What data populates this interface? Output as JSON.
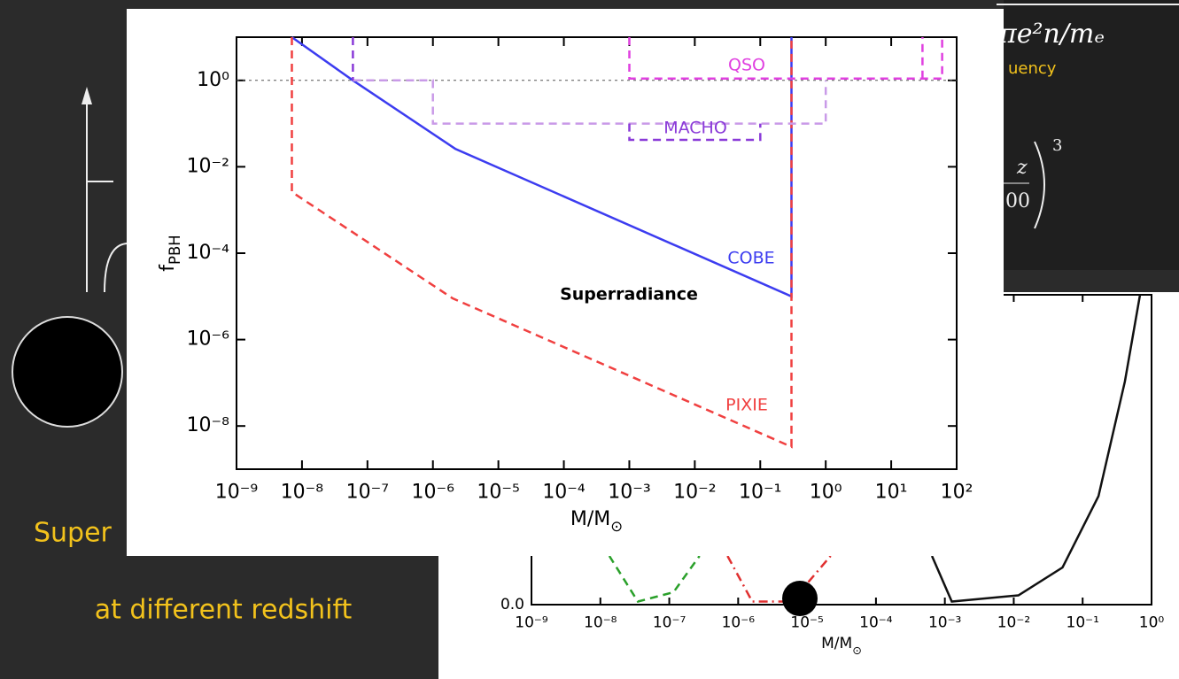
{
  "slide": {
    "caption_1": "Super",
    "caption_2": "at different redshift",
    "formula_1": "πe²n/mₑ",
    "formula_2": "uency",
    "formula_3a": "z",
    "formula_3b": "00",
    "formula_3c": "3"
  },
  "chart_data": [
    {
      "type": "line",
      "xscale": "log",
      "yscale": "log",
      "xlabel": "M/M",
      "xlabel_sub": "⊙",
      "ylabel": "f",
      "ylabel_sub": "PBH",
      "annotation": "Superradiance",
      "xlim": [
        1e-09,
        100
      ],
      "ylim": [
        1e-09,
        10
      ],
      "xticks": [
        {
          "value": 1e-09,
          "label": "10⁻⁹"
        },
        {
          "value": 1e-08,
          "label": "10⁻⁸"
        },
        {
          "value": 1e-07,
          "label": "10⁻⁷"
        },
        {
          "value": 1e-06,
          "label": "10⁻⁶"
        },
        {
          "value": 1e-05,
          "label": "10⁻⁵"
        },
        {
          "value": 0.0001,
          "label": "10⁻⁴"
        },
        {
          "value": 0.001,
          "label": "10⁻³"
        },
        {
          "value": 0.01,
          "label": "10⁻²"
        },
        {
          "value": 0.1,
          "label": "10⁻¹"
        },
        {
          "value": 1,
          "label": "10⁰"
        },
        {
          "value": 10,
          "label": "10¹"
        },
        {
          "value": 100,
          "label": "10²"
        }
      ],
      "yticks": [
        {
          "value": 1e-08,
          "label": "10⁻⁸"
        },
        {
          "value": 1e-06,
          "label": "10⁻⁶"
        },
        {
          "value": 0.0001,
          "label": "10⁻⁴"
        },
        {
          "value": 0.01,
          "label": "10⁻²"
        },
        {
          "value": 1,
          "label": "10⁰"
        }
      ],
      "reference_line": {
        "value": 1,
        "color": "#555555",
        "style": "dotted"
      },
      "series": [
        {
          "name": "COBE",
          "color": "#3c3cf0",
          "style": "solid",
          "x": [
            7e-09,
            6e-08,
            2.2e-06,
            0.3,
            0.3
          ],
          "values": [
            10,
            1,
            0.026,
            1e-05,
            10
          ]
        },
        {
          "name": "PIXIE",
          "color": "#f04040",
          "style": "dashed",
          "x": [
            7e-09,
            7e-09,
            2e-06,
            0.3,
            0.3
          ],
          "values": [
            10,
            0.0026,
            9e-06,
            3.3e-09,
            10
          ]
        },
        {
          "color": "#c99ae8",
          "style": "dashed",
          "x": [
            6e-08,
            1e-06,
            1e-06,
            1,
            1
          ],
          "values": [
            1,
            1,
            0.1,
            0.1,
            1
          ]
        },
        {
          "name": "MACHO",
          "color": "#8a3ad8",
          "style": "dashed",
          "x": [
            6e-08,
            6e-08,
            null,
            0.001,
            0.001,
            0.1,
            0.1
          ],
          "values": [
            10,
            1,
            null,
            0.1,
            0.042,
            0.042,
            0.1
          ]
        },
        {
          "name": "QSO",
          "color": "#e040e0",
          "style": "dashed",
          "x": [
            0.001,
            0.001,
            60,
            60,
            null,
            30,
            30
          ],
          "values": [
            10,
            1.1,
            1.1,
            10,
            null,
            1.1,
            10
          ]
        }
      ]
    },
    {
      "type": "line",
      "xscale": "log",
      "yscale": "linear",
      "xlabel": "M/M",
      "xlabel_sub": "⊙",
      "xlim": [
        1e-09,
        1
      ],
      "ylim": [
        0,
        1
      ],
      "xticks": [
        {
          "value": 1e-09,
          "label": "10⁻⁹"
        },
        {
          "value": 1e-08,
          "label": "10⁻⁸"
        },
        {
          "value": 1e-07,
          "label": "10⁻⁷"
        },
        {
          "value": 1e-06,
          "label": "10⁻⁶"
        },
        {
          "value": 1e-05,
          "label": "10⁻⁵"
        },
        {
          "value": 0.0001,
          "label": "10⁻⁴"
        },
        {
          "value": 0.001,
          "label": "10⁻³"
        },
        {
          "value": 0.01,
          "label": "10⁻²"
        },
        {
          "value": 0.1,
          "label": "10⁻¹"
        },
        {
          "value": 1,
          "label": "10⁰"
        }
      ],
      "yticks": [
        {
          "value": 0,
          "label": "0.0"
        }
      ],
      "series": [
        {
          "color": "#111111",
          "style": "solid",
          "x": [
            0.00065,
            0.00126,
            0.0117,
            0.051,
            0.17,
            0.41,
            0.68
          ],
          "values": [
            0.157,
            0.01,
            0.03,
            0.12,
            0.35,
            0.72,
            1
          ]
        },
        {
          "color": "#2aa02a",
          "style": "dashed",
          "x": [
            1.35e-08,
            3.5e-08,
            1.15e-07,
            2.75e-07
          ],
          "values": [
            0.157,
            0.01,
            0.04,
            0.157
          ]
        },
        {
          "color": "#e03030",
          "style": "dashdot",
          "x": [
            7e-07,
            1.6e-06,
            6e-06,
            2.2e-05
          ],
          "values": [
            0.157,
            0.01,
            0.01,
            0.157
          ]
        }
      ]
    }
  ]
}
